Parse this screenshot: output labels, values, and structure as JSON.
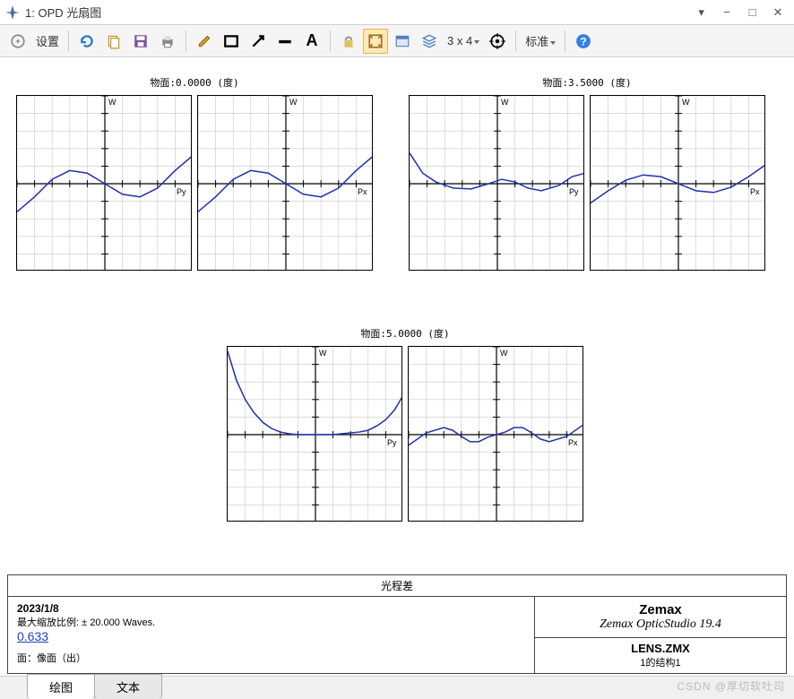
{
  "window": {
    "title": "1: OPD 光扇图"
  },
  "toolbar": {
    "settings_label": "设置",
    "grid_label": "3 x 4",
    "standard_label": "标准"
  },
  "charts": {
    "width": 196,
    "height": 196,
    "grid_color": "#c8c8c8",
    "axis_color": "#000000",
    "curve_color": "#2030b0",
    "bg_color": "#ffffff",
    "tick_count": 10,
    "xlim": [
      -1,
      1
    ],
    "ylim": [
      -1,
      1
    ],
    "axis_label_W": "W",
    "groups": [
      {
        "title": "物面:0.0000 (度)",
        "panels": [
          {
            "axis_x": "Py",
            "curve": [
              [
                -1,
                -0.32
              ],
              [
                -0.8,
                -0.15
              ],
              [
                -0.6,
                0.05
              ],
              [
                -0.4,
                0.15
              ],
              [
                -0.2,
                0.12
              ],
              [
                0,
                0
              ],
              [
                0.2,
                -0.12
              ],
              [
                0.4,
                -0.15
              ],
              [
                0.6,
                -0.05
              ],
              [
                0.8,
                0.15
              ],
              [
                1,
                0.32
              ]
            ]
          },
          {
            "axis_x": "Px",
            "curve": [
              [
                -1,
                -0.32
              ],
              [
                -0.8,
                -0.15
              ],
              [
                -0.6,
                0.05
              ],
              [
                -0.4,
                0.15
              ],
              [
                -0.2,
                0.12
              ],
              [
                0,
                0
              ],
              [
                0.2,
                -0.12
              ],
              [
                0.4,
                -0.15
              ],
              [
                0.6,
                -0.05
              ],
              [
                0.8,
                0.15
              ],
              [
                1,
                0.32
              ]
            ]
          }
        ]
      },
      {
        "title": "物面:3.5000 (度)",
        "panels": [
          {
            "axis_x": "Py",
            "curve": [
              [
                -1,
                0.35
              ],
              [
                -0.85,
                0.12
              ],
              [
                -0.7,
                0.02
              ],
              [
                -0.5,
                -0.05
              ],
              [
                -0.3,
                -0.06
              ],
              [
                -0.1,
                0.0
              ],
              [
                0.05,
                0.05
              ],
              [
                0.2,
                0.02
              ],
              [
                0.35,
                -0.05
              ],
              [
                0.5,
                -0.08
              ],
              [
                0.7,
                -0.02
              ],
              [
                0.85,
                0.08
              ],
              [
                1,
                0.12
              ]
            ]
          },
          {
            "axis_x": "Px",
            "curve": [
              [
                -1,
                -0.22
              ],
              [
                -0.8,
                -0.08
              ],
              [
                -0.6,
                0.04
              ],
              [
                -0.4,
                0.1
              ],
              [
                -0.2,
                0.08
              ],
              [
                0,
                0
              ],
              [
                0.2,
                -0.08
              ],
              [
                0.4,
                -0.1
              ],
              [
                0.6,
                -0.04
              ],
              [
                0.8,
                0.08
              ],
              [
                1,
                0.22
              ]
            ]
          }
        ]
      },
      {
        "title": "物面:5.0000 (度)",
        "panels": [
          {
            "axis_x": "Py",
            "curve": [
              [
                -1,
                0.95
              ],
              [
                -0.9,
                0.62
              ],
              [
                -0.8,
                0.4
              ],
              [
                -0.7,
                0.25
              ],
              [
                -0.6,
                0.14
              ],
              [
                -0.5,
                0.07
              ],
              [
                -0.4,
                0.03
              ],
              [
                -0.3,
                0.01
              ],
              [
                -0.2,
                0.0
              ],
              [
                -0.1,
                0.0
              ],
              [
                0,
                0
              ],
              [
                0.1,
                0.0
              ],
              [
                0.2,
                0.0
              ],
              [
                0.3,
                0.01
              ],
              [
                0.4,
                0.02
              ],
              [
                0.5,
                0.03
              ],
              [
                0.6,
                0.05
              ],
              [
                0.7,
                0.1
              ],
              [
                0.8,
                0.17
              ],
              [
                0.9,
                0.28
              ],
              [
                1,
                0.45
              ]
            ]
          },
          {
            "axis_x": "Px",
            "curve": [
              [
                -1,
                -0.12
              ],
              [
                -0.8,
                0.02
              ],
              [
                -0.6,
                0.08
              ],
              [
                -0.5,
                0.05
              ],
              [
                -0.4,
                -0.02
              ],
              [
                -0.3,
                -0.08
              ],
              [
                -0.2,
                -0.08
              ],
              [
                -0.1,
                -0.03
              ],
              [
                0,
                0.0
              ],
              [
                0.1,
                0.03
              ],
              [
                0.2,
                0.08
              ],
              [
                0.3,
                0.08
              ],
              [
                0.4,
                0.02
              ],
              [
                0.5,
                -0.05
              ],
              [
                0.6,
                -0.08
              ],
              [
                0.8,
                -0.02
              ],
              [
                1,
                0.12
              ]
            ]
          }
        ]
      }
    ]
  },
  "footer": {
    "section_title": "光程差",
    "date": "2023/1/8",
    "scale_label": "最大缩放比例: ± 20.000 Waves.",
    "wavelength": "0.633",
    "surface_label": "面：像面（出）",
    "brand": "Zemax",
    "product": "Zemax OpticStudio 19.4",
    "lens_file": "LENS.ZMX",
    "config": "1的结构1"
  },
  "tabs": {
    "plot": "绘图",
    "text": "文本"
  },
  "watermark": "CSDN @厚切软吐司"
}
